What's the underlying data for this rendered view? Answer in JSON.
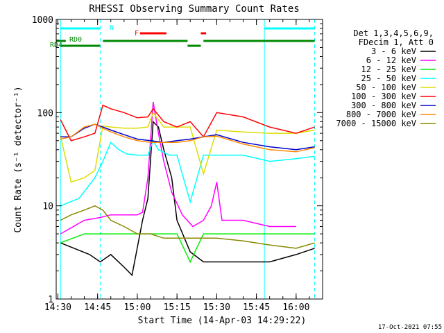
{
  "chart_data": {
    "type": "line",
    "title": "RHESSI Observing Summary Count Rates",
    "xlabel": "Start Time (14-Apr-03 14:29:22)",
    "ylabel": "Count Rate (s⁻¹ detector⁻¹)",
    "yscale": "log",
    "ylim": [
      1,
      1000
    ],
    "xlim": [
      "14:29:22",
      "16:10:00"
    ],
    "x_ticks": [
      "14:30",
      "14:45",
      "15:00",
      "15:15",
      "15:30",
      "15:45",
      "16:00"
    ],
    "y_ticks": [
      "1",
      "10",
      "100",
      "1000"
    ],
    "legend_header": [
      "Det 1,3,4,5,6,9,",
      "FDecim 1, Att 0"
    ],
    "legend_position": "right",
    "footer": "17-Oct-2021 07:55",
    "series": [
      {
        "name": "3 - 6 keV",
        "color": "#000000",
        "x": [
          "14:31",
          "14:42",
          "14:46",
          "14:50",
          "14:55",
          "14:58",
          "15:02",
          "15:04",
          "15:06",
          "15:08",
          "15:10",
          "15:13",
          "15:15",
          "15:20",
          "15:25",
          "15:30",
          "15:40",
          "15:50",
          "16:00",
          "16:07"
        ],
        "y": [
          4,
          3,
          2.5,
          3,
          2.2,
          1.8,
          7,
          12,
          80,
          70,
          40,
          20,
          7,
          3.2,
          2.5,
          2.5,
          2.5,
          2.5,
          3,
          3.5
        ]
      },
      {
        "name": "6 - 12 keV",
        "color": "#ff00ff",
        "x": [
          "14:31",
          "14:40",
          "14:46",
          "14:50",
          "14:55",
          "15:00",
          "15:02",
          "15:04",
          "15:06",
          "15:08",
          "15:10",
          "15:13",
          "15:17",
          "15:21",
          "15:25",
          "15:28",
          "15:30",
          "15:32",
          "15:40",
          "15:50",
          "16:00"
        ],
        "y": [
          5,
          7,
          7.5,
          8,
          8,
          8,
          8.5,
          20,
          130,
          60,
          30,
          14,
          8,
          6,
          7,
          10,
          18,
          7,
          7,
          6,
          6
        ]
      },
      {
        "name": "12 - 25 keV",
        "color": "#00ee00",
        "x": [
          "14:31",
          "14:40",
          "14:46",
          "14:50",
          "15:00",
          "15:05",
          "15:10",
          "15:15",
          "15:20",
          "15:25",
          "15:30",
          "15:40",
          "15:50",
          "16:00",
          "16:07"
        ],
        "y": [
          4,
          5,
          5,
          5,
          5,
          5,
          5,
          5,
          2.5,
          5,
          5,
          5,
          5,
          5,
          5
        ]
      },
      {
        "name": "25 - 50 keV",
        "color": "#00ffff",
        "x": [
          "14:31",
          "14:38",
          "14:44",
          "14:47",
          "14:50",
          "14:53",
          "14:56",
          "15:00",
          "15:04",
          "15:06",
          "15:08",
          "15:12",
          "15:15",
          "15:20",
          "15:25",
          "15:30",
          "15:40",
          "15:50",
          "16:00",
          "16:07"
        ],
        "y": [
          10,
          12,
          20,
          30,
          48,
          40,
          36,
          35,
          35,
          50,
          40,
          35,
          35,
          11,
          35,
          35,
          35,
          30,
          32,
          34
        ]
      },
      {
        "name": "50 - 100 keV",
        "color": "#dddd00",
        "x": [
          "14:31",
          "14:35",
          "14:40",
          "14:44",
          "14:47",
          "14:50",
          "14:55",
          "15:00",
          "15:04",
          "15:06",
          "15:10",
          "15:15",
          "15:20",
          "15:25",
          "15:30",
          "15:40",
          "15:50",
          "16:00",
          "16:07"
        ],
        "y": [
          56,
          18,
          20,
          24,
          72,
          70,
          68,
          68,
          70,
          100,
          70,
          70,
          70,
          22,
          65,
          62,
          60,
          60,
          65
        ]
      },
      {
        "name": "100 - 300 keV",
        "color": "#ff0000",
        "x": [
          "14:31",
          "14:35",
          "14:40",
          "14:44",
          "14:47",
          "14:50",
          "14:55",
          "15:00",
          "15:04",
          "15:06",
          "15:10",
          "15:15",
          "15:20",
          "15:25",
          "15:30",
          "15:40",
          "15:50",
          "16:00",
          "16:07"
        ],
        "y": [
          84,
          50,
          55,
          60,
          120,
          110,
          100,
          88,
          90,
          110,
          80,
          70,
          80,
          55,
          100,
          90,
          70,
          60,
          70
        ]
      },
      {
        "name": "300 - 800 keV",
        "color": "#0000cc",
        "x": [
          "14:31",
          "14:35",
          "14:40",
          "14:44",
          "14:47",
          "14:50",
          "14:55",
          "15:00",
          "15:05",
          "15:10",
          "15:15",
          "15:20",
          "15:25",
          "15:30",
          "15:40",
          "15:50",
          "16:00",
          "16:07"
        ],
        "y": [
          55,
          55,
          68,
          75,
          70,
          65,
          58,
          52,
          50,
          48,
          50,
          52,
          55,
          58,
          48,
          43,
          40,
          43
        ]
      },
      {
        "name": "800 - 7000 keV",
        "color": "#ff8800",
        "x": [
          "14:31",
          "14:35",
          "14:40",
          "14:44",
          "14:47",
          "14:50",
          "14:55",
          "15:00",
          "15:05",
          "15:10",
          "15:15",
          "15:20",
          "15:25",
          "15:30",
          "15:40",
          "15:50",
          "16:00",
          "16:07"
        ],
        "y": [
          52,
          55,
          70,
          75,
          68,
          62,
          55,
          50,
          48,
          48,
          48,
          50,
          55,
          56,
          46,
          40,
          38,
          42
        ]
      },
      {
        "name": "7000 - 15000 keV",
        "color": "#888800",
        "x": [
          "14:31",
          "14:35",
          "14:40",
          "14:44",
          "14:47",
          "14:50",
          "14:55",
          "15:00",
          "15:05",
          "15:10",
          "15:15",
          "15:20",
          "15:25",
          "15:30",
          "15:40",
          "15:50",
          "16:00",
          "16:07"
        ],
        "y": [
          7,
          8,
          9,
          10,
          9,
          7,
          6,
          5,
          5,
          4.5,
          4.5,
          4.5,
          4.5,
          4.5,
          4.2,
          3.8,
          3.5,
          4
        ]
      }
    ],
    "state_bars": [
      {
        "label": "N",
        "color": "#00ffff",
        "segments": [
          [
            "14:31",
            "14:46"
          ],
          [
            "15:48",
            "16:07"
          ]
        ]
      },
      {
        "label": "F",
        "color": "#ff0000",
        "segments": [
          [
            "15:01",
            "15:11"
          ],
          [
            "15:24",
            "15:26"
          ]
        ]
      },
      {
        "label": "RD0",
        "color": "#008800",
        "segments": [
          [
            "14:29:22",
            "14:33"
          ],
          [
            "14:47",
            "15:19"
          ],
          [
            "15:25",
            "16:07"
          ]
        ]
      },
      {
        "label": "RD4",
        "color": "#008800",
        "segments": [
          [
            "14:31",
            "14:46"
          ],
          [
            "15:19",
            "15:24"
          ]
        ]
      }
    ],
    "vertical_markers": {
      "solid": [
        "14:31",
        "15:48"
      ],
      "dashed": [
        "14:46",
        "16:07"
      ],
      "color": "#00ffff"
    }
  }
}
